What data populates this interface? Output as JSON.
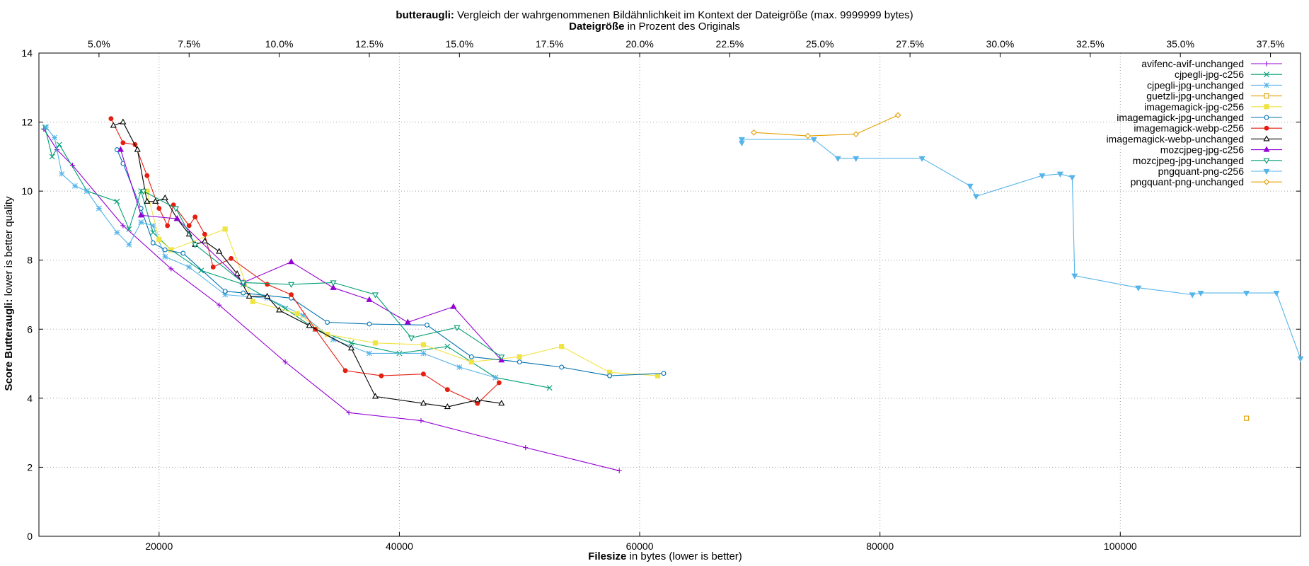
{
  "chart_data": {
    "type": "line",
    "title_bold": "butteraugli:",
    "title_rest": "Vergleich der wahrgenommenen Bildähnlichkeit im Kontext der Dateigröße (max. 9999999 bytes)",
    "x2label_bold": "Dateigröße",
    "x2label_rest": "in Prozent des Originals",
    "xlabel_bold": "Filesize",
    "xlabel_rest": "in bytes (lower is better)",
    "ylabel_bold": "Score Butteraugli:",
    "ylabel_rest": "lower is better quality",
    "xlim": [
      10000,
      115000
    ],
    "ylim": [
      0,
      14
    ],
    "x_ticks": [
      "20000",
      "40000",
      "60000",
      "80000",
      "100000"
    ],
    "x_tick_values": [
      20000,
      40000,
      60000,
      80000,
      100000
    ],
    "y_ticks": [
      "0",
      "2",
      "4",
      "6",
      "8",
      "10",
      "12",
      "14"
    ],
    "y_tick_values": [
      0,
      2,
      4,
      6,
      8,
      10,
      12,
      14
    ],
    "x2_ticks": [
      "5.0%",
      "7.5%",
      "10.0%",
      "12.5%",
      "15.0%",
      "17.5%",
      "20.0%",
      "22.5%",
      "25.0%",
      "27.5%",
      "30.0%",
      "32.5%",
      "35.0%",
      "37.5%"
    ],
    "x2_tick_values": [
      5.0,
      7.5,
      10.0,
      12.5,
      15.0,
      17.5,
      20.0,
      22.5,
      25.0,
      27.5,
      30.0,
      32.5,
      35.0,
      37.5
    ],
    "x2_to_x_bytes_per_percent": 3000,
    "grid": true,
    "legend_position": "top-right",
    "series": [
      {
        "name": "avifenc-avif-unchanged",
        "color": "#9400d3",
        "marker": "plus",
        "points": [
          [
            10400,
            11.8
          ],
          [
            11500,
            11.2
          ],
          [
            12800,
            10.75
          ],
          [
            17000,
            9.0
          ],
          [
            21000,
            7.75
          ],
          [
            25000,
            6.7
          ],
          [
            30500,
            5.05
          ],
          [
            35800,
            3.58
          ],
          [
            41800,
            3.35
          ],
          [
            50500,
            2.57
          ],
          [
            58300,
            1.9
          ]
        ]
      },
      {
        "name": "cjpegli-jpg-c256",
        "color": "#009e73",
        "marker": "cross",
        "points": [
          [
            10500,
            11.85
          ],
          [
            11100,
            11.0
          ],
          [
            11700,
            11.35
          ],
          [
            14000,
            10.0
          ],
          [
            16500,
            9.7
          ],
          [
            17500,
            8.9
          ],
          [
            18500,
            10.0
          ],
          [
            19500,
            8.8
          ],
          [
            21000,
            8.3
          ],
          [
            23500,
            7.7
          ],
          [
            27000,
            7.3
          ],
          [
            30500,
            6.6
          ],
          [
            33000,
            6.0
          ],
          [
            36000,
            5.6
          ],
          [
            40000,
            5.3
          ],
          [
            44000,
            5.5
          ],
          [
            48000,
            4.6
          ],
          [
            52500,
            4.3
          ]
        ]
      },
      {
        "name": "cjpegli-jpg-unchanged",
        "color": "#56b4e9",
        "marker": "star",
        "points": [
          [
            10600,
            11.85
          ],
          [
            11300,
            11.55
          ],
          [
            11900,
            10.5
          ],
          [
            13000,
            10.15
          ],
          [
            14000,
            10.0
          ],
          [
            15000,
            9.5
          ],
          [
            16500,
            8.8
          ],
          [
            17500,
            8.45
          ],
          [
            18500,
            9.1
          ],
          [
            19500,
            9.0
          ],
          [
            20500,
            8.1
          ],
          [
            22500,
            7.8
          ],
          [
            25500,
            7.0
          ],
          [
            29000,
            6.9
          ],
          [
            32000,
            6.4
          ],
          [
            34500,
            5.7
          ],
          [
            37500,
            5.3
          ],
          [
            42000,
            5.3
          ],
          [
            45000,
            4.9
          ],
          [
            48000,
            4.6
          ]
        ]
      },
      {
        "name": "guetzli-jpg-unchanged",
        "color": "#e69f00",
        "marker": "square-open",
        "points": [
          [
            110500,
            3.42
          ]
        ]
      },
      {
        "name": "imagemagick-jpg-c256",
        "color": "#f0e442",
        "marker": "square",
        "points": [
          [
            19000,
            10.0
          ],
          [
            20000,
            8.6
          ],
          [
            21000,
            8.3
          ],
          [
            25500,
            8.9
          ],
          [
            27800,
            6.8
          ],
          [
            31500,
            6.45
          ],
          [
            34000,
            5.85
          ],
          [
            38000,
            5.6
          ],
          [
            42000,
            5.55
          ],
          [
            46000,
            5.05
          ],
          [
            50000,
            5.2
          ],
          [
            53500,
            5.5
          ],
          [
            57500,
            4.75
          ],
          [
            61500,
            4.65
          ]
        ]
      },
      {
        "name": "imagemagick-jpg-unchanged",
        "color": "#0072b2",
        "marker": "circle-open",
        "points": [
          [
            16500,
            11.2
          ],
          [
            17000,
            10.8
          ],
          [
            18500,
            9.5
          ],
          [
            19500,
            8.5
          ],
          [
            20500,
            8.3
          ],
          [
            22000,
            8.2
          ],
          [
            25500,
            7.1
          ],
          [
            27000,
            7.05
          ],
          [
            31000,
            6.9
          ],
          [
            34000,
            6.2
          ],
          [
            37500,
            6.15
          ],
          [
            42300,
            6.12
          ],
          [
            46000,
            5.2
          ],
          [
            50000,
            5.05
          ],
          [
            53500,
            4.9
          ],
          [
            57500,
            4.65
          ],
          [
            62000,
            4.72
          ]
        ]
      },
      {
        "name": "imagemagick-webp-c256",
        "color": "#e51e10",
        "marker": "circle",
        "points": [
          [
            16000,
            12.1
          ],
          [
            17000,
            11.4
          ],
          [
            18000,
            11.35
          ],
          [
            19000,
            10.45
          ],
          [
            20000,
            9.5
          ],
          [
            20700,
            9.0
          ],
          [
            21200,
            9.6
          ],
          [
            22500,
            9.0
          ],
          [
            23000,
            9.25
          ],
          [
            23800,
            8.75
          ],
          [
            24500,
            7.8
          ],
          [
            26000,
            8.05
          ],
          [
            29000,
            7.3
          ],
          [
            31000,
            7.0
          ],
          [
            33000,
            6.0
          ],
          [
            35500,
            4.8
          ],
          [
            38500,
            4.65
          ],
          [
            42000,
            4.7
          ],
          [
            44000,
            4.25
          ],
          [
            46500,
            3.85
          ],
          [
            48300,
            4.45
          ]
        ]
      },
      {
        "name": "imagemagick-webp-unchanged",
        "color": "#000000",
        "marker": "triangle-open",
        "points": [
          [
            16200,
            11.9
          ],
          [
            17000,
            12.0
          ],
          [
            18200,
            11.2
          ],
          [
            19000,
            9.7
          ],
          [
            19700,
            9.7
          ],
          [
            20500,
            9.8
          ],
          [
            21500,
            9.2
          ],
          [
            22500,
            8.75
          ],
          [
            23000,
            8.45
          ],
          [
            23800,
            8.55
          ],
          [
            25000,
            8.25
          ],
          [
            26500,
            7.6
          ],
          [
            27500,
            6.95
          ],
          [
            29000,
            6.95
          ],
          [
            30000,
            6.55
          ],
          [
            32500,
            6.1
          ],
          [
            36000,
            5.45
          ],
          [
            38000,
            4.05
          ],
          [
            42000,
            3.85
          ],
          [
            44000,
            3.75
          ],
          [
            46500,
            3.95
          ],
          [
            48500,
            3.85
          ]
        ]
      },
      {
        "name": "mozcjpeg-jpg-c256",
        "color": "#9400d3",
        "marker": "triangle",
        "points": [
          [
            16800,
            11.2
          ],
          [
            18500,
            9.3
          ],
          [
            21500,
            9.2
          ],
          [
            27000,
            7.35
          ],
          [
            31000,
            7.95
          ],
          [
            34500,
            7.2
          ],
          [
            37500,
            6.85
          ],
          [
            40700,
            6.2
          ],
          [
            44500,
            6.65
          ],
          [
            48500,
            5.1
          ]
        ]
      },
      {
        "name": "mozcjpeg-jpg-unchanged",
        "color": "#009e73",
        "marker": "triangle-down-open",
        "points": [
          [
            18700,
            10.0
          ],
          [
            21400,
            9.5
          ],
          [
            23000,
            8.45
          ],
          [
            27000,
            7.35
          ],
          [
            31000,
            7.3
          ],
          [
            34500,
            7.35
          ],
          [
            38000,
            7.0
          ],
          [
            41000,
            5.75
          ],
          [
            44800,
            6.05
          ],
          [
            48500,
            5.2
          ]
        ]
      },
      {
        "name": "pngquant-png-c256",
        "color": "#56b4e9",
        "marker": "triangle-down",
        "points": [
          [
            68500,
            11.4
          ],
          [
            68500,
            11.5
          ],
          [
            74500,
            11.5
          ],
          [
            76500,
            10.95
          ],
          [
            78000,
            10.95
          ],
          [
            83500,
            10.95
          ],
          [
            87500,
            10.15
          ],
          [
            88000,
            9.85
          ],
          [
            93500,
            10.45
          ],
          [
            95000,
            10.5
          ],
          [
            96000,
            10.4
          ],
          [
            96200,
            7.55
          ],
          [
            101500,
            7.2
          ],
          [
            106000,
            7.0
          ],
          [
            106700,
            7.05
          ],
          [
            110500,
            7.05
          ],
          [
            113000,
            7.05
          ],
          [
            115000,
            5.15
          ]
        ]
      },
      {
        "name": "pngquant-png-unchanged",
        "color": "#e69f00",
        "marker": "diamond-open",
        "points": [
          [
            69500,
            11.7
          ],
          [
            74000,
            11.6
          ],
          [
            78000,
            11.65
          ],
          [
            81500,
            12.2
          ]
        ]
      }
    ]
  }
}
